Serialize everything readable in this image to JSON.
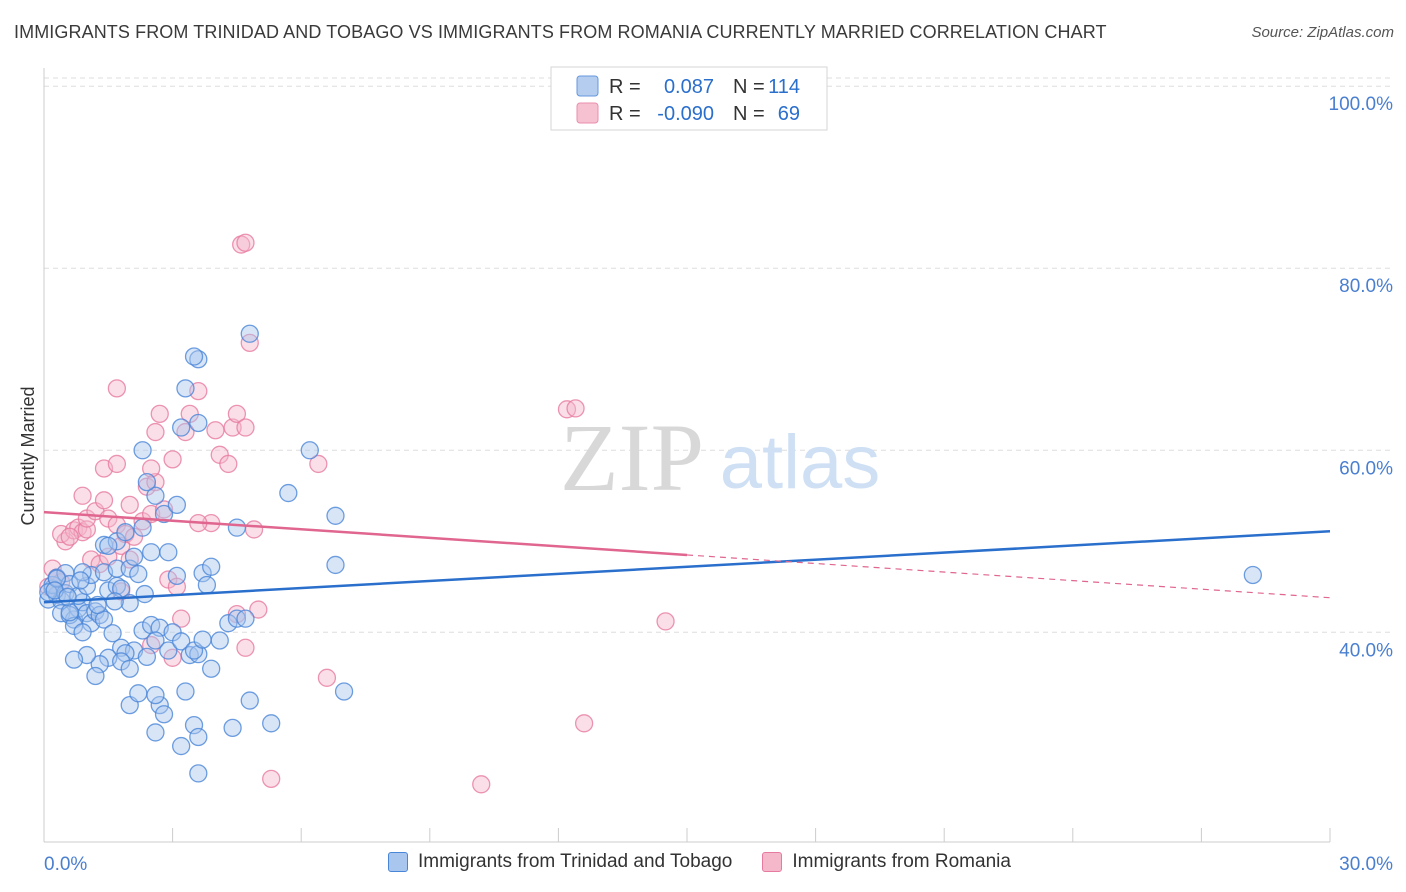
{
  "title": "IMMIGRANTS FROM TRINIDAD AND TOBAGO VS IMMIGRANTS FROM ROMANIA CURRENTLY MARRIED CORRELATION CHART",
  "source": "Source: ZipAtlas.com",
  "watermark": {
    "zip": "ZIP",
    "atlas": "atlas"
  },
  "colors": {
    "blue_fill": "#a9c6ee",
    "blue_stroke": "#4a86d8",
    "blue_line": "#2a6fcc",
    "pink_fill": "#f5b8cb",
    "pink_stroke": "#e77aa0",
    "pink_line": "#e0668f",
    "axis_text": "#4a7fd0",
    "grid": "#dddddd"
  },
  "legend_top": [
    {
      "r_label": "R =",
      "r_value": "0.087",
      "n_label": "N =",
      "n_value": "114"
    },
    {
      "r_label": "R =",
      "r_value": "-0.090",
      "n_label": "N =",
      "n_value": "69"
    }
  ],
  "legend_bottom": [
    "Immigrants from Trinidad and Tobago",
    "Immigrants from Romania"
  ],
  "chart_data": {
    "type": "scatter",
    "title": "IMMIGRANTS FROM TRINIDAD AND TOBAGO VS IMMIGRANTS FROM ROMANIA CURRENTLY MARRIED CORRELATION CHART",
    "xlabel": "",
    "ylabel": "Currently Married",
    "xlim": [
      0,
      30
    ],
    "ylim": [
      18.5,
      102
    ],
    "x_ticks": [
      "0.0%",
      "30.0%"
    ],
    "y_ticks": [
      {
        "value": 40,
        "label": "40.0%"
      },
      {
        "value": 60,
        "label": "60.0%"
      },
      {
        "value": 80,
        "label": "80.0%"
      },
      {
        "value": 100,
        "label": "100.0%"
      }
    ],
    "series": [
      {
        "name": "Immigrants from Trinidad and Tobago",
        "r": 0.087,
        "n": 114,
        "trend": {
          "x0": 0,
          "y0": 43.3,
          "x1": 30,
          "y1": 51.1,
          "solid_to": 30
        },
        "points": [
          [
            0.1,
            43.6
          ],
          [
            0.2,
            44.8
          ],
          [
            0.3,
            44.1
          ],
          [
            0.2,
            45.2
          ],
          [
            0.4,
            43.5
          ],
          [
            0.5,
            44.3
          ],
          [
            0.3,
            46.0
          ],
          [
            0.5,
            46.5
          ],
          [
            0.6,
            45.3
          ],
          [
            0.1,
            44.4
          ],
          [
            0.4,
            42.1
          ],
          [
            0.7,
            41.4
          ],
          [
            0.8,
            42.6
          ],
          [
            0.9,
            43.3
          ],
          [
            0.6,
            41.9
          ],
          [
            1.0,
            42.1
          ],
          [
            1.1,
            41.0
          ],
          [
            1.2,
            42.3
          ],
          [
            1.3,
            41.9
          ],
          [
            1.4,
            41.4
          ],
          [
            0.8,
            44.0
          ],
          [
            1.0,
            45.1
          ],
          [
            1.1,
            46.3
          ],
          [
            0.9,
            46.6
          ],
          [
            1.5,
            44.6
          ],
          [
            1.7,
            45.1
          ],
          [
            1.8,
            44.8
          ],
          [
            2.0,
            43.2
          ],
          [
            0.7,
            40.7
          ],
          [
            0.9,
            40.0
          ],
          [
            1.6,
            39.9
          ],
          [
            1.8,
            38.3
          ],
          [
            2.1,
            38.0
          ],
          [
            2.3,
            40.2
          ],
          [
            2.5,
            40.8
          ],
          [
            2.7,
            40.5
          ],
          [
            2.6,
            39.1
          ],
          [
            2.4,
            37.3
          ],
          [
            1.9,
            37.7
          ],
          [
            1.5,
            37.2
          ],
          [
            1.3,
            36.5
          ],
          [
            1.0,
            37.5
          ],
          [
            0.7,
            37.0
          ],
          [
            1.2,
            35.2
          ],
          [
            1.8,
            36.8
          ],
          [
            2.0,
            36.0
          ],
          [
            2.9,
            38.0
          ],
          [
            3.0,
            40.0
          ],
          [
            3.2,
            39.0
          ],
          [
            3.4,
            37.5
          ],
          [
            3.6,
            37.6
          ],
          [
            3.5,
            38.0
          ],
          [
            3.7,
            39.2
          ],
          [
            3.9,
            36.0
          ],
          [
            4.1,
            39.1
          ],
          [
            4.3,
            41.0
          ],
          [
            4.5,
            41.5
          ],
          [
            4.7,
            41.5
          ],
          [
            2.7,
            32.0
          ],
          [
            2.0,
            32.0
          ],
          [
            2.2,
            33.3
          ],
          [
            2.6,
            33.1
          ],
          [
            2.8,
            31.0
          ],
          [
            3.3,
            33.5
          ],
          [
            2.6,
            29.0
          ],
          [
            3.5,
            29.8
          ],
          [
            3.6,
            28.5
          ],
          [
            3.2,
            27.5
          ],
          [
            3.6,
            24.5
          ],
          [
            4.4,
            29.5
          ],
          [
            4.8,
            32.5
          ],
          [
            5.3,
            30.0
          ],
          [
            7.0,
            33.5
          ],
          [
            1.4,
            46.6
          ],
          [
            1.7,
            47.0
          ],
          [
            2.0,
            47.0
          ],
          [
            2.2,
            46.4
          ],
          [
            2.1,
            48.3
          ],
          [
            2.5,
            48.8
          ],
          [
            2.9,
            48.8
          ],
          [
            3.1,
            46.2
          ],
          [
            3.7,
            46.5
          ],
          [
            3.9,
            47.2
          ],
          [
            3.8,
            45.2
          ],
          [
            1.4,
            49.6
          ],
          [
            1.7,
            50.0
          ],
          [
            1.5,
            49.5
          ],
          [
            1.9,
            51.0
          ],
          [
            2.3,
            51.5
          ],
          [
            2.8,
            53.0
          ],
          [
            2.6,
            55.0
          ],
          [
            2.4,
            56.5
          ],
          [
            2.3,
            60.0
          ],
          [
            3.1,
            54.0
          ],
          [
            3.2,
            62.5
          ],
          [
            3.6,
            63.0
          ],
          [
            3.3,
            66.8
          ],
          [
            3.6,
            70.0
          ],
          [
            3.5,
            70.3
          ],
          [
            4.8,
            72.8
          ],
          [
            4.5,
            51.5
          ],
          [
            5.7,
            55.3
          ],
          [
            6.2,
            60.0
          ],
          [
            6.8,
            52.8
          ],
          [
            6.8,
            47.4
          ],
          [
            0.6,
            42.2
          ],
          [
            0.3,
            45.9
          ],
          [
            28.2,
            46.3
          ],
          [
            0.25,
            44.6
          ],
          [
            0.55,
            43.9
          ],
          [
            1.25,
            43.0
          ],
          [
            0.85,
            45.7
          ],
          [
            1.65,
            43.4
          ],
          [
            2.35,
            44.2
          ]
        ]
      },
      {
        "name": "Immigrants from Romania",
        "r": -0.09,
        "n": 69,
        "trend": {
          "x0": 0,
          "y0": 53.2,
          "x1": 30,
          "y1": 43.8,
          "solid_to": 15
        },
        "points": [
          [
            0.2,
            47.0
          ],
          [
            0.3,
            46.0
          ],
          [
            0.1,
            45.0
          ],
          [
            0.4,
            45.5
          ],
          [
            0.5,
            50.0
          ],
          [
            0.4,
            50.8
          ],
          [
            0.7,
            51.2
          ],
          [
            0.8,
            51.5
          ],
          [
            0.9,
            51.0
          ],
          [
            1.0,
            51.3
          ],
          [
            0.6,
            50.5
          ],
          [
            1.1,
            48.0
          ],
          [
            1.3,
            47.5
          ],
          [
            1.5,
            48.3
          ],
          [
            1.8,
            49.5
          ],
          [
            2.0,
            48.0
          ],
          [
            1.0,
            52.5
          ],
          [
            1.2,
            53.3
          ],
          [
            1.5,
            52.5
          ],
          [
            1.7,
            51.8
          ],
          [
            1.9,
            50.8
          ],
          [
            2.1,
            50.5
          ],
          [
            2.3,
            52.2
          ],
          [
            2.5,
            53.0
          ],
          [
            2.8,
            53.5
          ],
          [
            0.9,
            55.0
          ],
          [
            1.4,
            54.5
          ],
          [
            2.0,
            54.0
          ],
          [
            1.4,
            58.0
          ],
          [
            1.7,
            58.5
          ],
          [
            2.4,
            56.0
          ],
          [
            2.6,
            56.5
          ],
          [
            2.5,
            58.0
          ],
          [
            3.0,
            59.0
          ],
          [
            3.3,
            62.0
          ],
          [
            3.4,
            64.0
          ],
          [
            3.6,
            66.5
          ],
          [
            4.0,
            62.2
          ],
          [
            4.1,
            59.5
          ],
          [
            4.3,
            58.5
          ],
          [
            4.4,
            62.5
          ],
          [
            4.5,
            64.0
          ],
          [
            4.7,
            62.5
          ],
          [
            4.8,
            71.8
          ],
          [
            4.6,
            82.6
          ],
          [
            4.7,
            82.8
          ],
          [
            2.7,
            64.0
          ],
          [
            2.6,
            62.0
          ],
          [
            1.7,
            66.8
          ],
          [
            6.4,
            58.5
          ],
          [
            3.9,
            52.0
          ],
          [
            3.6,
            52.0
          ],
          [
            4.9,
            51.3
          ],
          [
            2.9,
            45.8
          ],
          [
            3.1,
            45.0
          ],
          [
            1.8,
            44.5
          ],
          [
            5.0,
            42.5
          ],
          [
            4.5,
            42.0
          ],
          [
            3.2,
            41.5
          ],
          [
            3.0,
            37.2
          ],
          [
            4.7,
            38.3
          ],
          [
            2.5,
            38.6
          ],
          [
            6.6,
            35.0
          ],
          [
            12.2,
            64.5
          ],
          [
            12.4,
            64.6
          ],
          [
            14.5,
            41.2
          ],
          [
            12.6,
            30.0
          ],
          [
            10.2,
            23.3
          ],
          [
            5.3,
            23.9
          ]
        ]
      }
    ]
  }
}
